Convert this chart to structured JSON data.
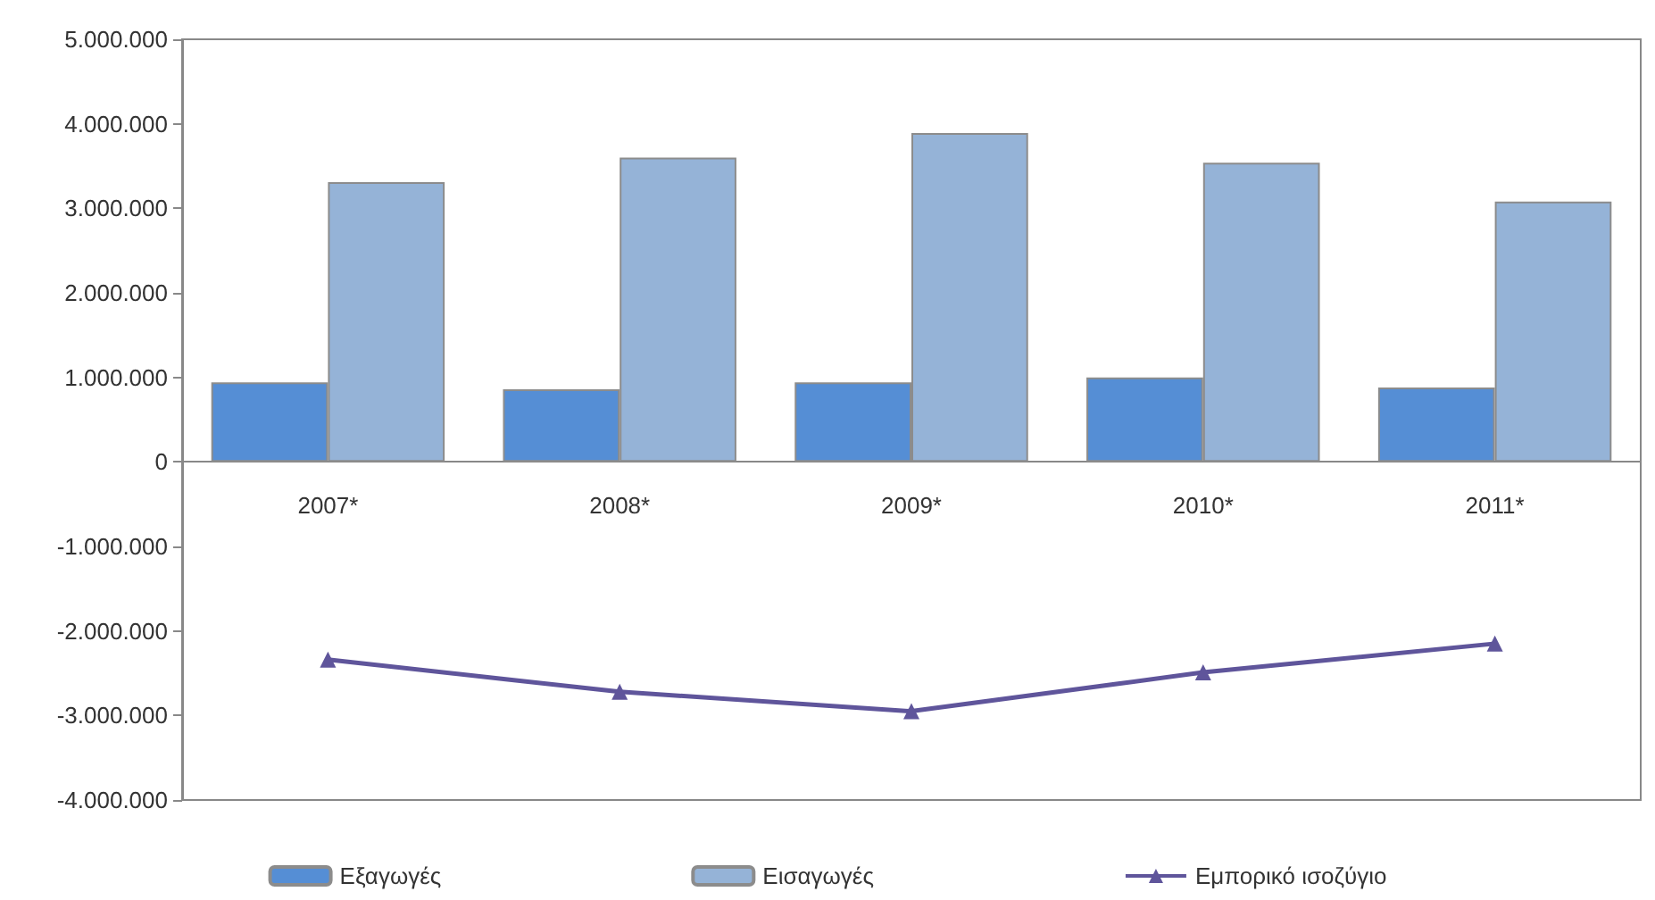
{
  "chart_data": {
    "type": "bar",
    "categories": [
      "2007*",
      "2008*",
      "2009*",
      "2010*",
      "2011*"
    ],
    "series": [
      {
        "name": "Εξαγωγές",
        "color": "#558ed5",
        "values": [
          940000,
          860000,
          940000,
          1000000,
          880000
        ]
      },
      {
        "name": "Εισαγωγές",
        "color": "#95b3d7",
        "values": [
          3310000,
          3600000,
          3890000,
          3540000,
          3080000
        ]
      },
      {
        "name": "Εμπορικό ισοζύγιο",
        "type": "line",
        "color": "#5f559b",
        "values": [
          -2340000,
          -2720000,
          -2950000,
          -2490000,
          -2150000
        ]
      }
    ],
    "ylim": [
      -4000000,
      5000000
    ],
    "yticks": [
      {
        "value": -4000000,
        "label": "-4.000.000"
      },
      {
        "value": -3000000,
        "label": "-3.000.000"
      },
      {
        "value": -2000000,
        "label": "-2.000.000"
      },
      {
        "value": -1000000,
        "label": "-1.000.000"
      },
      {
        "value": 0,
        "label": "0"
      },
      {
        "value": 1000000,
        "label": "1.000.000"
      },
      {
        "value": 2000000,
        "label": "2.000.000"
      },
      {
        "value": 3000000,
        "label": "3.000.000"
      },
      {
        "value": 4000000,
        "label": "4.000.000"
      },
      {
        "value": 5000000,
        "label": "5.000.000"
      }
    ],
    "grid": false,
    "legend": "bottom",
    "marker": "triangle",
    "line_style": "solid"
  }
}
